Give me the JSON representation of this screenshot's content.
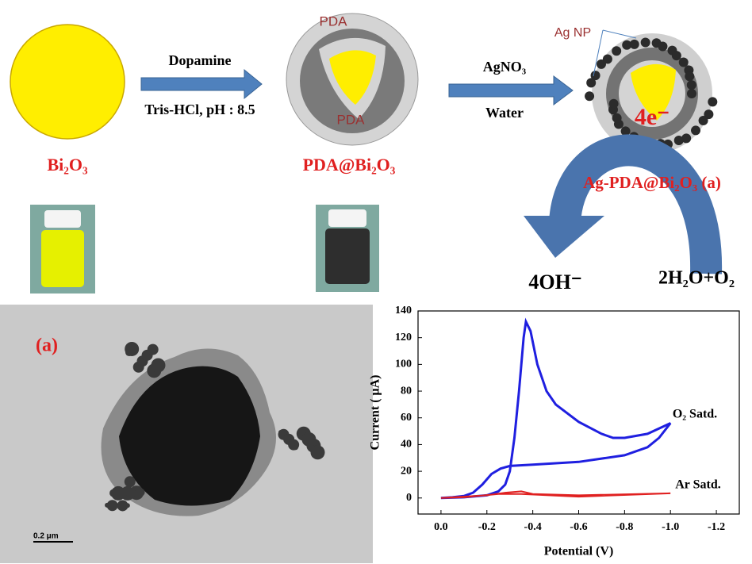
{
  "diagram": {
    "bi2o3": "Bi₂O₃",
    "dopamine": "Dopamine",
    "tris": "Tris-HCl, pH : 8.5",
    "pda_outer": "PDA",
    "pda_inner": "PDA",
    "pda_bi2o3": "PDA@Bi₂O₃",
    "agno3": "AgNO₃",
    "water": "Water",
    "ag_np": "Ag NP",
    "electrons": "4e⁻",
    "ag_pda_bi2o3": "Ag-PDA@Bi₂O₃ (a)",
    "hydroxide": "4OH⁻",
    "reactants": "2H₂O+O₂",
    "tem_label": "(a)",
    "scale_bar": "0.2 μm"
  },
  "chart_data": {
    "type": "line",
    "xlabel": "Potential (V)",
    "ylabel": "Current ( μA)",
    "xlim": [
      0.1,
      -1.3
    ],
    "ylim": [
      -12,
      140
    ],
    "xticks": [
      {
        "value": 0,
        "label": "0.0"
      },
      -0.2,
      -0.4,
      -0.6,
      -0.8,
      {
        "value": -1,
        "label": "-1.0"
      },
      -1.2
    ],
    "yticks": [
      0,
      20,
      40,
      60,
      80,
      100,
      120,
      140
    ],
    "series": [
      {
        "name": "O₂ Satd.",
        "color": "#1f1fe0",
        "x": [
          0,
          -0.1,
          -0.2,
          -0.25,
          -0.28,
          -0.3,
          -0.32,
          -0.34,
          -0.36,
          -0.37,
          -0.39,
          -0.42,
          -0.46,
          -0.5,
          -0.6,
          -0.7,
          -0.75,
          -0.8,
          -0.9,
          -1.0,
          -0.95,
          -0.9,
          -0.8,
          -0.6,
          -0.4,
          -0.3,
          -0.26,
          -0.22,
          -0.18,
          -0.14,
          -0.1,
          -0.05,
          0
        ],
        "values": [
          0,
          0.5,
          2,
          5,
          10,
          20,
          45,
          80,
          120,
          132,
          125,
          100,
          80,
          70,
          57,
          48,
          45,
          45,
          48,
          56,
          45,
          38,
          32,
          27,
          25,
          24,
          22,
          18,
          10,
          4,
          1.5,
          0.5,
          0
        ]
      },
      {
        "name": "Ar Satd.",
        "color": "#e02020",
        "x": [
          0,
          -0.2,
          -0.28,
          -0.35,
          -0.4,
          -0.6,
          -1.0,
          -0.6,
          -0.35,
          -0.25,
          -0.1,
          0
        ],
        "values": [
          0,
          2,
          4,
          5,
          3,
          2,
          3.5,
          1,
          3,
          3,
          0.5,
          0
        ]
      }
    ]
  }
}
